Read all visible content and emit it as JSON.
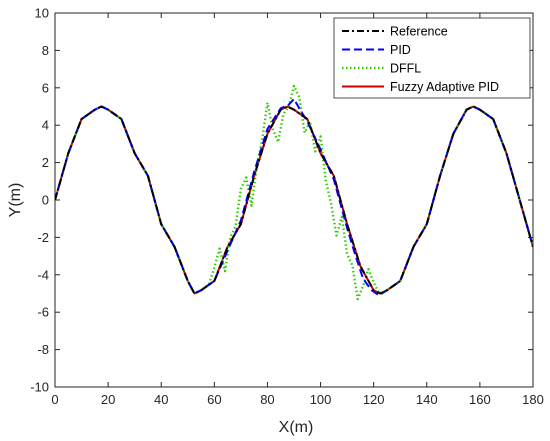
{
  "chart_data": {
    "type": "line",
    "title": "",
    "xlabel": "X(m)",
    "ylabel": "Y(m)",
    "xlim": [
      0,
      180
    ],
    "ylim": [
      -10,
      10
    ],
    "xticks": [
      0,
      20,
      40,
      60,
      80,
      100,
      120,
      140,
      160,
      180
    ],
    "yticks": [
      -10,
      -8,
      -6,
      -4,
      -2,
      0,
      2,
      4,
      6,
      8,
      10
    ],
    "grid": false,
    "legend_position": "top-right",
    "series": [
      {
        "name": "Reference",
        "color": "#000000",
        "style": "dash-dot",
        "x": [
          0,
          5,
          10,
          15,
          17.5,
          20,
          25,
          30,
          35,
          40,
          45,
          50,
          52.5,
          55,
          60,
          65,
          70,
          75,
          80,
          85,
          87.5,
          90,
          95,
          100,
          105,
          110,
          115,
          120,
          122.5,
          125,
          130,
          135,
          140,
          145,
          150,
          155,
          157.5,
          160,
          165,
          170,
          175,
          180
        ],
        "y": [
          0,
          2.5,
          4.33,
          4.83,
          5,
          4.83,
          4.33,
          2.5,
          1.29,
          -1.29,
          -2.5,
          -4.33,
          -5,
          -4.83,
          -4.33,
          -2.5,
          -1.29,
          1.29,
          3.54,
          4.83,
          5,
          4.83,
          4.33,
          2.5,
          1.29,
          -1.29,
          -3.54,
          -4.83,
          -5,
          -4.83,
          -4.33,
          -2.5,
          -1.29,
          1.29,
          3.54,
          4.83,
          5,
          4.83,
          4.33,
          2.5,
          0,
          -2.5
        ]
      },
      {
        "name": "PID",
        "color": "#0000ff",
        "style": "dashed",
        "x": [
          0,
          5,
          10,
          15,
          17.5,
          20,
          25,
          30,
          35,
          40,
          45,
          50,
          52.5,
          55,
          60,
          65,
          70,
          75,
          80,
          85,
          88,
          90,
          92,
          95,
          100,
          105,
          110,
          113,
          116,
          119,
          122,
          125,
          130,
          135,
          140,
          145,
          150,
          155,
          157.5,
          160,
          165,
          170,
          175,
          180
        ],
        "y": [
          0,
          2.5,
          4.33,
          4.83,
          5,
          4.83,
          4.33,
          2.5,
          1.29,
          -1.29,
          -2.5,
          -4.33,
          -5,
          -4.83,
          -4.33,
          -2.7,
          -1.1,
          1.5,
          3.8,
          4.9,
          5.1,
          5.4,
          4.9,
          4.2,
          2.7,
          1.1,
          -1.5,
          -2.9,
          -4.2,
          -4.8,
          -5.1,
          -4.83,
          -4.33,
          -2.5,
          -1.29,
          1.29,
          3.54,
          4.83,
          5,
          4.83,
          4.33,
          2.5,
          0,
          -2.5
        ]
      },
      {
        "name": "DFFL",
        "color": "#33cc00",
        "style": "dotted",
        "x": [
          0,
          5,
          10,
          15,
          17.5,
          20,
          25,
          30,
          35,
          40,
          45,
          50,
          52.5,
          55,
          58,
          60,
          62,
          64,
          66,
          68,
          70,
          72,
          74,
          76,
          78,
          80,
          82,
          84,
          86,
          88,
          90,
          92,
          94,
          96,
          98,
          100,
          102,
          104,
          106,
          108,
          110,
          112,
          114,
          116,
          118,
          120,
          122,
          125,
          130,
          135,
          140,
          145,
          150,
          155,
          157.5,
          160,
          165,
          170,
          175,
          180
        ],
        "y": [
          0,
          2.5,
          4.33,
          4.83,
          5,
          4.83,
          4.33,
          2.5,
          1.29,
          -1.29,
          -2.5,
          -4.33,
          -5,
          -4.83,
          -4.5,
          -3.6,
          -2.6,
          -3.8,
          -2.0,
          -1.4,
          0.6,
          1.2,
          -0.3,
          1.8,
          3.2,
          5.2,
          3.8,
          3.1,
          4.6,
          5.0,
          6.1,
          5.5,
          3.6,
          4.2,
          2.6,
          3.4,
          1.0,
          -0.2,
          -1.9,
          -0.9,
          -2.9,
          -3.5,
          -5.3,
          -4.6,
          -3.7,
          -4.4,
          -5.0,
          -4.83,
          -4.33,
          -2.5,
          -1.29,
          1.29,
          3.54,
          4.83,
          5,
          4.83,
          4.33,
          2.5,
          0,
          -2.5
        ]
      },
      {
        "name": "Fuzzy Adaptive PID",
        "color": "#cc0000",
        "style": "solid",
        "x": [
          0,
          5,
          10,
          15,
          17.5,
          20,
          25,
          30,
          35,
          40,
          45,
          50,
          52.5,
          55,
          60,
          65,
          70,
          75,
          80,
          85,
          87.5,
          90,
          95,
          100,
          105,
          110,
          115,
          120,
          122.5,
          125,
          130,
          135,
          140,
          145,
          150,
          155,
          157.5,
          160,
          165,
          170,
          175,
          180
        ],
        "y": [
          0,
          2.5,
          4.33,
          4.83,
          5,
          4.83,
          4.33,
          2.5,
          1.29,
          -1.29,
          -2.5,
          -4.33,
          -5,
          -4.83,
          -4.33,
          -2.5,
          -1.29,
          1.29,
          3.54,
          4.83,
          5,
          4.83,
          4.33,
          2.5,
          1.29,
          -1.29,
          -3.54,
          -4.83,
          -5,
          -4.83,
          -4.33,
          -2.5,
          -1.29,
          1.29,
          3.54,
          4.83,
          5,
          4.83,
          4.33,
          2.5,
          0,
          -2.5
        ]
      }
    ]
  }
}
